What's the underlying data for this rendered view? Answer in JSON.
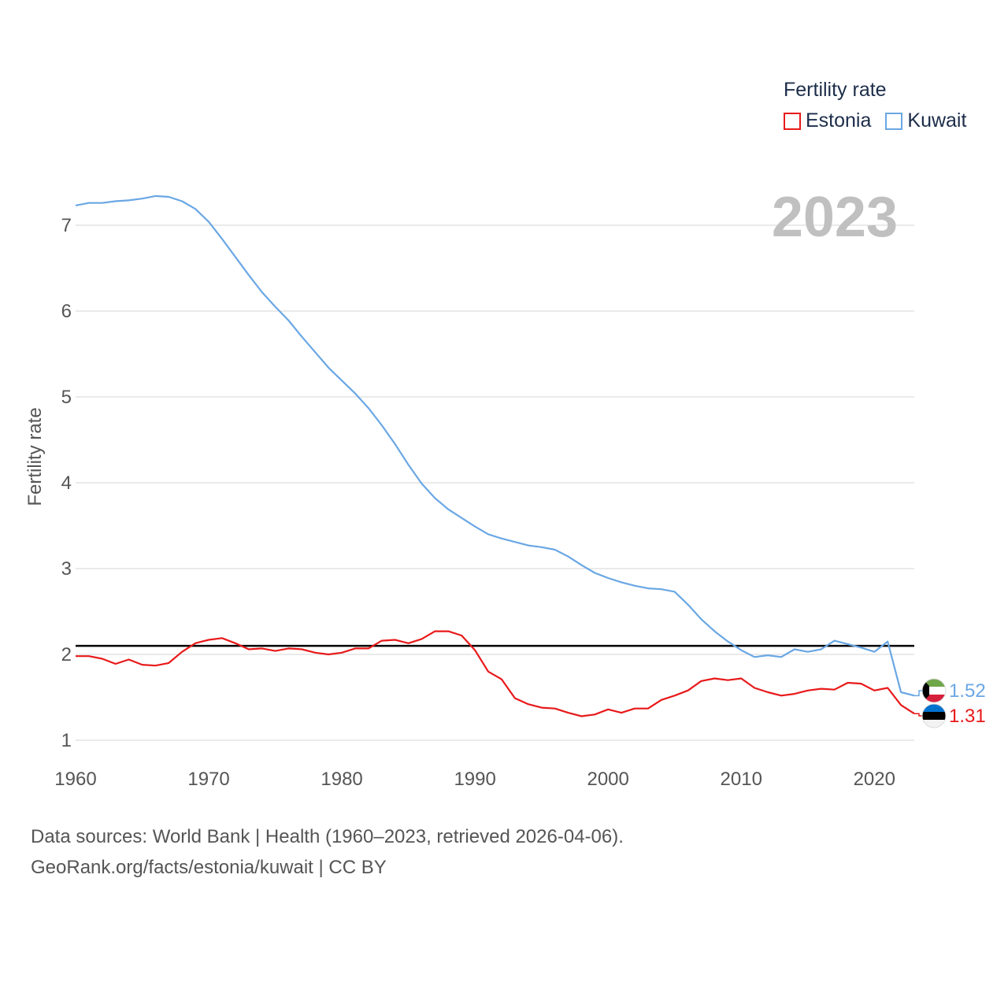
{
  "chart_data": {
    "type": "line",
    "title": "Fertility rate",
    "xlabel": "",
    "ylabel": "Fertility rate",
    "xlim": [
      1960,
      2023
    ],
    "ylim": [
      0.9,
      7.7
    ],
    "yticks": [
      1,
      2,
      3,
      4,
      5,
      6,
      7
    ],
    "xticks": [
      1960,
      1970,
      1980,
      1990,
      2000,
      2010,
      2020
    ],
    "current_year": "2023",
    "reference_line": 2.1,
    "x": [
      1960,
      1961,
      1962,
      1963,
      1964,
      1965,
      1966,
      1967,
      1968,
      1969,
      1970,
      1971,
      1972,
      1973,
      1974,
      1975,
      1976,
      1977,
      1978,
      1979,
      1980,
      1981,
      1982,
      1983,
      1984,
      1985,
      1986,
      1987,
      1988,
      1989,
      1990,
      1991,
      1992,
      1993,
      1994,
      1995,
      1996,
      1997,
      1998,
      1999,
      2000,
      2001,
      2002,
      2003,
      2004,
      2005,
      2006,
      2007,
      2008,
      2009,
      2010,
      2011,
      2012,
      2013,
      2014,
      2015,
      2016,
      2017,
      2018,
      2019,
      2020,
      2021,
      2022,
      2023
    ],
    "series": [
      {
        "name": "Estonia",
        "color": "#e8191a",
        "end_label": "1.31",
        "flag": "estonia-flag",
        "values": [
          1.98,
          1.98,
          1.95,
          1.89,
          1.94,
          1.88,
          1.87,
          1.9,
          2.03,
          2.13,
          2.17,
          2.19,
          2.13,
          2.06,
          2.07,
          2.04,
          2.07,
          2.06,
          2.02,
          2.0,
          2.02,
          2.07,
          2.07,
          2.16,
          2.17,
          2.13,
          2.18,
          2.27,
          2.27,
          2.22,
          2.05,
          1.8,
          1.71,
          1.49,
          1.42,
          1.38,
          1.37,
          1.32,
          1.28,
          1.3,
          1.36,
          1.32,
          1.37,
          1.37,
          1.47,
          1.52,
          1.58,
          1.69,
          1.72,
          1.7,
          1.72,
          1.61,
          1.56,
          1.52,
          1.54,
          1.58,
          1.6,
          1.59,
          1.67,
          1.66,
          1.58,
          1.61,
          1.41,
          1.31
        ]
      },
      {
        "name": "Kuwait",
        "color": "#6aa7e4",
        "end_label": "1.52",
        "flag": "kuwait-flag",
        "values": [
          7.23,
          7.26,
          7.26,
          7.28,
          7.29,
          7.31,
          7.34,
          7.33,
          7.28,
          7.19,
          7.04,
          6.84,
          6.63,
          6.42,
          6.22,
          6.05,
          5.89,
          5.7,
          5.52,
          5.34,
          5.19,
          5.04,
          4.87,
          4.67,
          4.45,
          4.21,
          3.99,
          3.82,
          3.69,
          3.59,
          3.49,
          3.4,
          3.35,
          3.31,
          3.27,
          3.25,
          3.22,
          3.14,
          3.04,
          2.95,
          2.89,
          2.84,
          2.8,
          2.77,
          2.76,
          2.73,
          2.58,
          2.41,
          2.27,
          2.15,
          2.05,
          1.97,
          1.99,
          1.97,
          2.06,
          2.03,
          2.06,
          2.16,
          2.12,
          2.08,
          2.03,
          2.15,
          1.56,
          1.52
        ]
      }
    ]
  },
  "legend": {
    "title": "Fertility rate",
    "items": [
      {
        "label": "Estonia",
        "color": "#e8191a"
      },
      {
        "label": "Kuwait",
        "color": "#6aa7e4"
      }
    ]
  },
  "footer": {
    "line1": "Data sources: World Bank | Health (1960–2023, retrieved 2026-04-06).",
    "line2": "GeoRank.org/facts/estonia/kuwait | CC BY"
  }
}
